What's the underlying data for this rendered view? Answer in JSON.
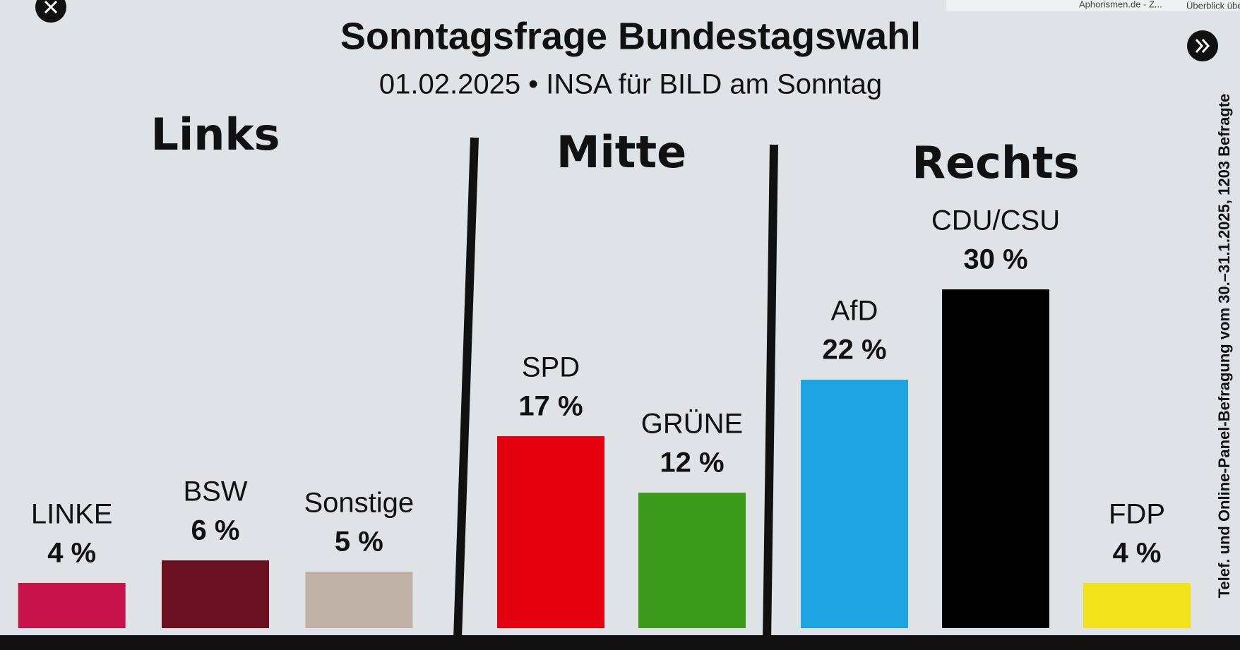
{
  "browser_tabs": [
    "Aphorismen.de - Z...",
    "Überblick übe"
  ],
  "chart_data": {
    "type": "bar",
    "title": "Sonntagsfrage Bundestagswahl",
    "subtitle": "01.02.2025 • INSA für BILD am Sonntag",
    "note": "Telef. und Online-Panel-Befragung vom 30.–31.1.2025, 1203 Befragte",
    "groups": [
      {
        "name": "Links",
        "categories": [
          "LINKE",
          "BSW",
          "Sonstige"
        ],
        "values": [
          4,
          6,
          5
        ],
        "value_labels": [
          "4 %",
          "6 %",
          "5 %"
        ],
        "colors": [
          "#c8124a",
          "#6b0f23",
          "#bfb1a6"
        ]
      },
      {
        "name": "Mitte",
        "categories": [
          "SPD",
          "GRÜNE"
        ],
        "values": [
          17,
          12
        ],
        "value_labels": [
          "17 %",
          "12 %"
        ],
        "colors": [
          "#e3000f",
          "#3c9a1c"
        ]
      },
      {
        "name": "Rechts",
        "categories": [
          "AfD",
          "CDU/CSU",
          "FDP"
        ],
        "values": [
          22,
          30,
          4
        ],
        "value_labels": [
          "22 %",
          "30 %",
          "4 %"
        ],
        "colors": [
          "#1ea4e0",
          "#000000",
          "#f2e21a"
        ]
      }
    ]
  }
}
